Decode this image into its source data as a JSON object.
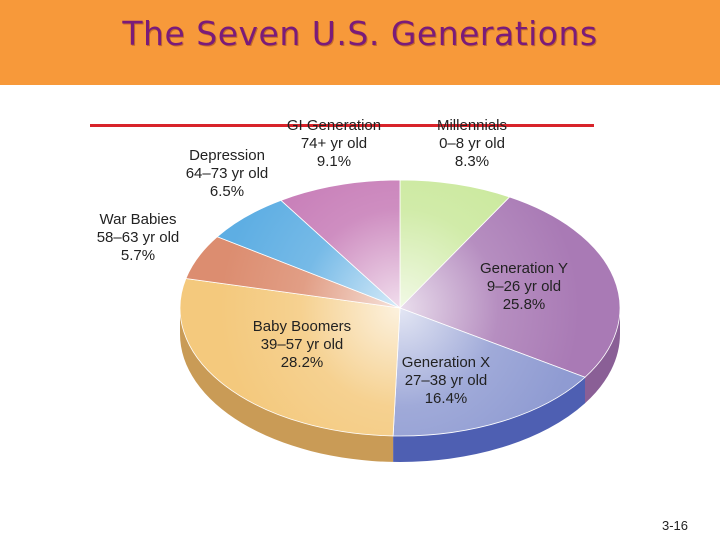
{
  "slide": {
    "title": "The Seven U.S. Generations",
    "number": "3-16"
  },
  "chart_data": {
    "type": "pie",
    "slices": [
      {
        "name": "Millennials",
        "range": "0–8 yr old",
        "value": 8.3,
        "label": "8.3%",
        "color": "#c9e89a"
      },
      {
        "name": "Generation Y",
        "range": "9–26 yr old",
        "value": 25.8,
        "label": "25.8%",
        "color": "#a97ab5"
      },
      {
        "name": "Generation X",
        "range": "27–38 yr old",
        "value": 16.4,
        "label": "16.4%",
        "color": "#8f9bd2"
      },
      {
        "name": "Baby Boomers",
        "range": "39–57 yr old",
        "value": 28.2,
        "label": "28.2%",
        "color": "#f4c97d"
      },
      {
        "name": "War Babies",
        "range": "58–63 yr old",
        "value": 5.7,
        "label": "5.7%",
        "color": "#dc8d70"
      },
      {
        "name": "Depression",
        "range": "64–73 yr old",
        "value": 6.5,
        "label": "6.5%",
        "color": "#5eaee3"
      },
      {
        "name": "GI Generation",
        "range": "74+ yr old",
        "value": 9.1,
        "label": "9.1%",
        "color": "#c67ab6"
      }
    ],
    "side_colors": {
      "Generation Y": "#8a5f96",
      "Generation X": "#4e5fb2",
      "Baby Boomers": "#c99b56"
    }
  }
}
